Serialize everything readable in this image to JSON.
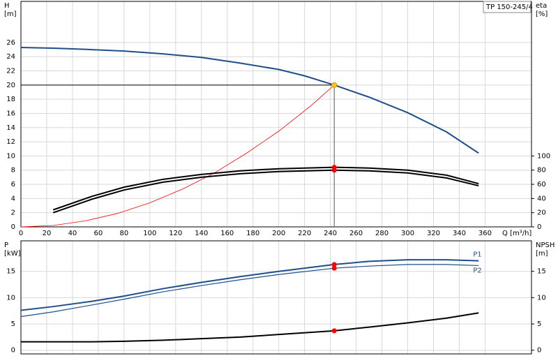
{
  "chart_data": [
    {
      "type": "line",
      "title": "TP 150-245/4",
      "xlabel": "Q [m³/h]",
      "ylabel": [
        "H",
        "[m]"
      ],
      "y2label": [
        "eta",
        "[%]"
      ],
      "xlim": [
        0,
        396
      ],
      "xticks": [
        0,
        20,
        40,
        60,
        80,
        100,
        120,
        140,
        160,
        180,
        200,
        220,
        240,
        260,
        280,
        300,
        320,
        340,
        360
      ],
      "ylim": [
        0,
        31.8
      ],
      "yticks": [
        0,
        2,
        4,
        6,
        8,
        10,
        12,
        14,
        16,
        18,
        20,
        22,
        24,
        26
      ],
      "y2lim": [
        0,
        318
      ],
      "y2ticks": [
        0,
        20,
        40,
        60,
        80,
        100
      ],
      "grid": true,
      "duty_point": {
        "x": 243,
        "y": 20,
        "color": "#ffcc00"
      },
      "series": [
        {
          "color": "#1f4e8c",
          "width": 2,
          "x": [
            0,
            25,
            55,
            80,
            110,
            140,
            170,
            200,
            220,
            243,
            270,
            300,
            330,
            355
          ],
          "values": [
            25.3,
            25.2,
            25.0,
            24.8,
            24.4,
            23.9,
            23.1,
            22.2,
            21.3,
            20.0,
            18.3,
            16.1,
            13.4,
            10.4
          ]
        },
        {
          "color": "#ff0000",
          "width": 0.8,
          "x": [
            0,
            25,
            50,
            75,
            100,
            125,
            150,
            175,
            200,
            225,
            243
          ],
          "values": [
            0,
            0.2,
            0.85,
            1.9,
            3.4,
            5.3,
            7.6,
            10.4,
            13.5,
            17.1,
            20.0
          ]
        },
        {
          "color": "#000000",
          "width": 2,
          "axis": "y2",
          "dot_color": "#ff0000",
          "x": [
            25,
            55,
            80,
            110,
            140,
            170,
            200,
            243,
            270,
            300,
            330,
            355
          ],
          "values": [
            24,
            43,
            56,
            67,
            74,
            79,
            82,
            84,
            83,
            80,
            73,
            61
          ]
        },
        {
          "color": "#000000",
          "width": 2,
          "axis": "y2",
          "dot_color": "#ff0000",
          "x": [
            25,
            55,
            80,
            110,
            140,
            170,
            200,
            243,
            270,
            300,
            330,
            355
          ],
          "values": [
            20,
            39,
            52,
            63,
            70,
            75,
            78,
            80,
            79,
            76,
            69,
            58
          ]
        }
      ]
    },
    {
      "type": "line",
      "ylabel": [
        "P",
        "[kW]"
      ],
      "y2label": [
        "NPSH",
        "[m]"
      ],
      "xlim": [
        0,
        396
      ],
      "ylim": [
        -0.7,
        20.8
      ],
      "yticks": [
        0,
        5,
        10,
        15
      ],
      "y2lim": [
        -0.7,
        20.8
      ],
      "y2ticks": [
        0,
        5,
        10,
        15
      ],
      "grid": true,
      "series": [
        {
          "name": "P1",
          "color": "#1f4e8c",
          "width": 2,
          "dot_color": "#ff0000",
          "x": [
            0,
            25,
            55,
            80,
            110,
            140,
            170,
            200,
            243,
            270,
            300,
            330,
            355
          ],
          "values": [
            7.6,
            8.3,
            9.3,
            10.3,
            11.7,
            12.9,
            14.0,
            15.0,
            16.3,
            16.9,
            17.2,
            17.2,
            17.0
          ]
        },
        {
          "name": "P2",
          "color": "#1f4e8c",
          "width": 1.2,
          "dot_color": "#ff0000",
          "x": [
            0,
            25,
            55,
            80,
            110,
            140,
            170,
            200,
            243,
            270,
            300,
            330,
            355
          ],
          "values": [
            6.4,
            7.3,
            8.6,
            9.7,
            11.1,
            12.3,
            13.4,
            14.4,
            15.6,
            16.0,
            16.3,
            16.3,
            16.1
          ]
        },
        {
          "color": "#000000",
          "width": 2,
          "axis": "y2",
          "dot_color": "#ff0000",
          "x": [
            0,
            25,
            55,
            80,
            110,
            140,
            170,
            200,
            243,
            270,
            300,
            330,
            355
          ],
          "values": [
            1.6,
            1.6,
            1.6,
            1.7,
            1.9,
            2.2,
            2.5,
            3.0,
            3.7,
            4.4,
            5.2,
            6.1,
            7.1
          ]
        }
      ]
    }
  ]
}
